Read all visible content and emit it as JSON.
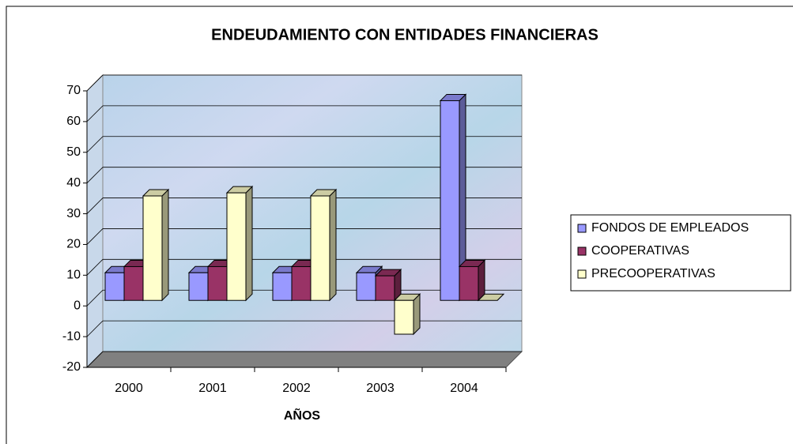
{
  "chart_data": {
    "type": "bar3d",
    "title": "ENDEUDAMIENTO CON ENTIDADES FINANCIERAS",
    "x_label": "AÑOS",
    "categories": [
      "2000",
      "2001",
      "2002",
      "2003",
      "2004"
    ],
    "series": [
      {
        "name": "FONDOS DE EMPLEADOS",
        "color": "#9999ff",
        "values": [
          9,
          9,
          9,
          9,
          65
        ]
      },
      {
        "name": "COOPERATIVAS",
        "color": "#993366",
        "values": [
          11,
          11,
          11,
          8,
          11
        ]
      },
      {
        "name": "PRECOOPERATIVAS",
        "color": "#ffffcc",
        "values": [
          34,
          35,
          34,
          -11,
          0
        ]
      }
    ],
    "ylim": [
      -20,
      70
    ],
    "yticks": [
      -20,
      -10,
      0,
      10,
      20,
      30,
      40,
      50,
      60,
      70
    ],
    "grid": true,
    "legend": "right"
  }
}
